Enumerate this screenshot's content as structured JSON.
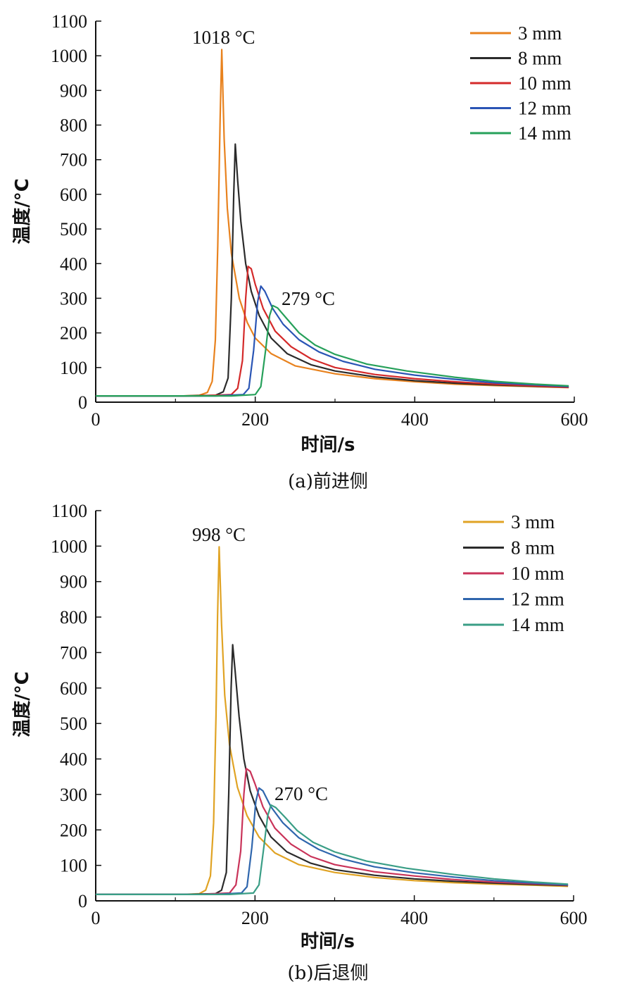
{
  "chart_data": [
    {
      "type": "line",
      "caption": "(a)前进侧",
      "xlabel": "时间/s",
      "ylabel": "温度/°C",
      "xlim": [
        0,
        600
      ],
      "ylim": [
        0,
        1100
      ],
      "xticks": [
        "0",
        "200",
        "400",
        "600"
      ],
      "yticks": [
        "0",
        "100",
        "200",
        "300",
        "400",
        "500",
        "600",
        "700",
        "800",
        "900",
        "1000",
        "1100"
      ],
      "legend_position": "top-right",
      "annotations": [
        {
          "text": "1018 °C",
          "x": 158,
          "y": 1018
        },
        {
          "text": "279 °C",
          "x": 222,
          "y": 279
        }
      ],
      "series": [
        {
          "name": "3 mm",
          "color": "#e8821e",
          "points": [
            [
              0,
              18
            ],
            [
              110,
              18
            ],
            [
              130,
              20
            ],
            [
              140,
              28
            ],
            [
              146,
              60
            ],
            [
              150,
              180
            ],
            [
              153,
              450
            ],
            [
              156,
              820
            ],
            [
              158,
              1018
            ],
            [
              161,
              760
            ],
            [
              165,
              560
            ],
            [
              170,
              430
            ],
            [
              180,
              300
            ],
            [
              190,
              230
            ],
            [
              200,
              185
            ],
            [
              220,
              140
            ],
            [
              250,
              105
            ],
            [
              300,
              82
            ],
            [
              350,
              68
            ],
            [
              400,
              59
            ],
            [
              450,
              52
            ],
            [
              500,
              48
            ],
            [
              550,
              45
            ],
            [
              593,
              42
            ]
          ]
        },
        {
          "name": "8 mm",
          "color": "#2b2b2b",
          "points": [
            [
              0,
              18
            ],
            [
              110,
              18
            ],
            [
              150,
              20
            ],
            [
              160,
              30
            ],
            [
              166,
              70
            ],
            [
              170,
              300
            ],
            [
              173,
              600
            ],
            [
              175,
              745
            ],
            [
              178,
              640
            ],
            [
              182,
              520
            ],
            [
              188,
              400
            ],
            [
              195,
              320
            ],
            [
              205,
              250
            ],
            [
              220,
              185
            ],
            [
              240,
              140
            ],
            [
              270,
              108
            ],
            [
              300,
              90
            ],
            [
              350,
              73
            ],
            [
              400,
              62
            ],
            [
              450,
              55
            ],
            [
              500,
              50
            ],
            [
              550,
              46
            ],
            [
              593,
              43
            ]
          ]
        },
        {
          "name": "10 mm",
          "color": "#d42a2a",
          "points": [
            [
              0,
              18
            ],
            [
              130,
              18
            ],
            [
              170,
              22
            ],
            [
              178,
              40
            ],
            [
              184,
              120
            ],
            [
              188,
              300
            ],
            [
              191,
              392
            ],
            [
              195,
              385
            ],
            [
              200,
              340
            ],
            [
              210,
              270
            ],
            [
              225,
              205
            ],
            [
              245,
              160
            ],
            [
              270,
              125
            ],
            [
              300,
              100
            ],
            [
              350,
              80
            ],
            [
              400,
              68
            ],
            [
              450,
              59
            ],
            [
              500,
              52
            ],
            [
              550,
              47
            ],
            [
              593,
              43
            ]
          ]
        },
        {
          "name": "12 mm",
          "color": "#2a55b5",
          "points": [
            [
              0,
              18
            ],
            [
              150,
              18
            ],
            [
              185,
              22
            ],
            [
              192,
              40
            ],
            [
              198,
              150
            ],
            [
              203,
              290
            ],
            [
              207,
              335
            ],
            [
              212,
              320
            ],
            [
              222,
              270
            ],
            [
              235,
              225
            ],
            [
              255,
              180
            ],
            [
              280,
              145
            ],
            [
              310,
              118
            ],
            [
              350,
              95
            ],
            [
              400,
              78
            ],
            [
              450,
              66
            ],
            [
              500,
              56
            ],
            [
              550,
              50
            ],
            [
              593,
              45
            ]
          ]
        },
        {
          "name": "14 mm",
          "color": "#26a05a",
          "points": [
            [
              0,
              18
            ],
            [
              170,
              18
            ],
            [
              200,
              22
            ],
            [
              207,
              45
            ],
            [
              213,
              150
            ],
            [
              218,
              250
            ],
            [
              222,
              279
            ],
            [
              228,
              272
            ],
            [
              240,
              240
            ],
            [
              255,
              200
            ],
            [
              275,
              165
            ],
            [
              300,
              138
            ],
            [
              340,
              110
            ],
            [
              390,
              90
            ],
            [
              450,
              72
            ],
            [
              500,
              60
            ],
            [
              550,
              52
            ],
            [
              593,
              47
            ]
          ]
        }
      ]
    },
    {
      "type": "line",
      "caption": "(b)后退侧",
      "xlabel": "时间/s",
      "ylabel": "温度/°C",
      "xlim": [
        0,
        600
      ],
      "ylim": [
        0,
        1100
      ],
      "xticks": [
        "0",
        "200",
        "400",
        "600"
      ],
      "yticks": [
        "0",
        "100",
        "200",
        "300",
        "400",
        "500",
        "600",
        "700",
        "800",
        "900",
        "1000",
        "1100"
      ],
      "legend_position": "top-right",
      "annotations": [
        {
          "text": "998 °C",
          "x": 155,
          "y": 998
        },
        {
          "text": "270 °C",
          "x": 222,
          "y": 270
        }
      ],
      "series": [
        {
          "name": "3 mm",
          "color": "#e0a324",
          "points": [
            [
              0,
              18
            ],
            [
              110,
              18
            ],
            [
              130,
              20
            ],
            [
              138,
              30
            ],
            [
              144,
              70
            ],
            [
              148,
              220
            ],
            [
              151,
              520
            ],
            [
              153,
              800
            ],
            [
              155,
              998
            ],
            [
              158,
              780
            ],
            [
              162,
              580
            ],
            [
              168,
              440
            ],
            [
              178,
              320
            ],
            [
              190,
              240
            ],
            [
              205,
              180
            ],
            [
              225,
              135
            ],
            [
              255,
              102
            ],
            [
              300,
              80
            ],
            [
              350,
              66
            ],
            [
              400,
              57
            ],
            [
              450,
              51
            ],
            [
              500,
              47
            ],
            [
              550,
              44
            ],
            [
              593,
              41
            ]
          ]
        },
        {
          "name": "8 mm",
          "color": "#2b2b2b",
          "points": [
            [
              0,
              18
            ],
            [
              110,
              18
            ],
            [
              150,
              20
            ],
            [
              158,
              30
            ],
            [
              164,
              80
            ],
            [
              167,
              300
            ],
            [
              170,
              600
            ],
            [
              172,
              722
            ],
            [
              175,
              650
            ],
            [
              180,
              520
            ],
            [
              186,
              400
            ],
            [
              194,
              310
            ],
            [
              205,
              240
            ],
            [
              220,
              180
            ],
            [
              240,
              138
            ],
            [
              270,
              106
            ],
            [
              300,
              88
            ],
            [
              350,
              72
            ],
            [
              400,
              62
            ],
            [
              450,
              55
            ],
            [
              500,
              50
            ],
            [
              550,
              46
            ],
            [
              593,
              43
            ]
          ]
        },
        {
          "name": "10 mm",
          "color": "#c93359",
          "points": [
            [
              0,
              18
            ],
            [
              130,
              18
            ],
            [
              168,
              22
            ],
            [
              176,
              45
            ],
            [
              182,
              140
            ],
            [
              186,
              300
            ],
            [
              189,
              373
            ],
            [
              194,
              365
            ],
            [
              200,
              330
            ],
            [
              210,
              265
            ],
            [
              225,
              205
            ],
            [
              245,
              160
            ],
            [
              270,
              125
            ],
            [
              300,
              102
            ],
            [
              350,
              82
            ],
            [
              400,
              70
            ],
            [
              450,
              60
            ],
            [
              500,
              53
            ],
            [
              550,
              48
            ],
            [
              593,
              44
            ]
          ]
        },
        {
          "name": "12 mm",
          "color": "#2f66ad",
          "points": [
            [
              0,
              18
            ],
            [
              150,
              18
            ],
            [
              183,
              22
            ],
            [
              190,
              40
            ],
            [
              196,
              150
            ],
            [
              201,
              280
            ],
            [
              205,
              318
            ],
            [
              210,
              310
            ],
            [
              220,
              265
            ],
            [
              235,
              220
            ],
            [
              255,
              178
            ],
            [
              280,
              145
            ],
            [
              310,
              118
            ],
            [
              350,
              96
            ],
            [
              400,
              79
            ],
            [
              450,
              67
            ],
            [
              500,
              57
            ],
            [
              550,
              50
            ],
            [
              593,
              45
            ]
          ]
        },
        {
          "name": "14 mm",
          "color": "#3a9e86",
          "points": [
            [
              0,
              18
            ],
            [
              168,
              18
            ],
            [
              198,
              22
            ],
            [
              205,
              45
            ],
            [
              211,
              150
            ],
            [
              216,
              240
            ],
            [
              220,
              270
            ],
            [
              226,
              263
            ],
            [
              238,
              235
            ],
            [
              253,
              198
            ],
            [
              273,
              165
            ],
            [
              300,
              138
            ],
            [
              340,
              112
            ],
            [
              390,
              92
            ],
            [
              450,
              74
            ],
            [
              500,
              62
            ],
            [
              550,
              53
            ],
            [
              593,
              47
            ]
          ]
        }
      ]
    }
  ]
}
